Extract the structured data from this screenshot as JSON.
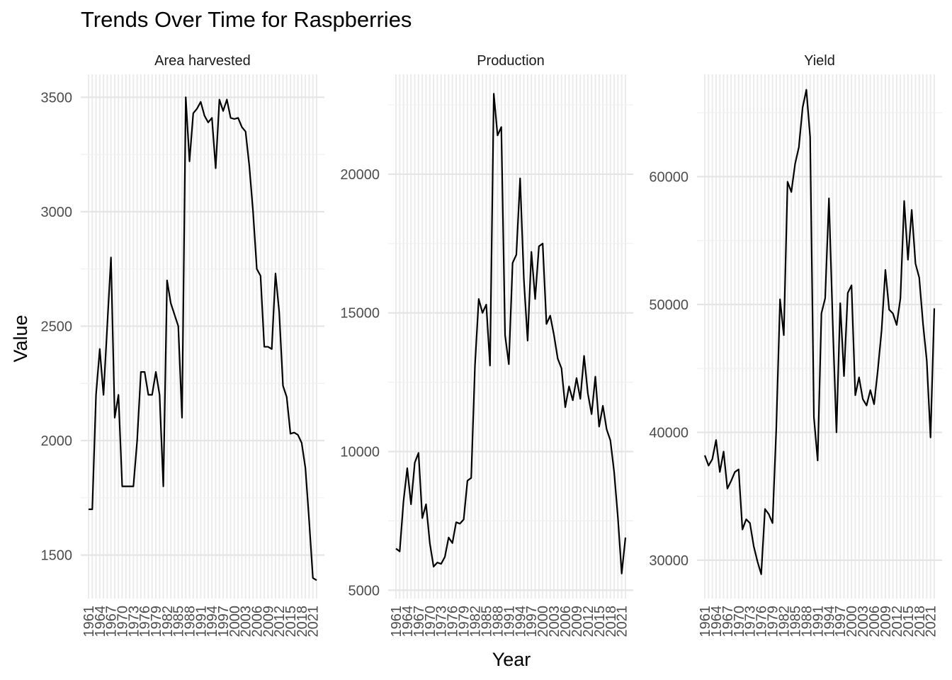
{
  "chart_data": {
    "type": "line",
    "title": "Trends Over Time for Raspberries",
    "xlabel": "Year",
    "ylabel": "Value",
    "grid": true,
    "x_tick_labels": [
      "1961",
      "1964",
      "1967",
      "1970",
      "1973",
      "1976",
      "1979",
      "1982",
      "1985",
      "1988",
      "1991",
      "1994",
      "1997",
      "2000",
      "2003",
      "2006",
      "2009",
      "2012",
      "2015",
      "2018",
      "2021"
    ],
    "x": [
      1961,
      1962,
      1963,
      1964,
      1965,
      1966,
      1967,
      1968,
      1969,
      1970,
      1971,
      1972,
      1973,
      1974,
      1975,
      1976,
      1977,
      1978,
      1979,
      1980,
      1981,
      1982,
      1983,
      1984,
      1985,
      1986,
      1987,
      1988,
      1989,
      1990,
      1991,
      1992,
      1993,
      1994,
      1995,
      1996,
      1997,
      1998,
      1999,
      2000,
      2001,
      2002,
      2003,
      2004,
      2005,
      2006,
      2007,
      2008,
      2009,
      2010,
      2011,
      2012,
      2013,
      2014,
      2015,
      2016,
      2017,
      2018,
      2019,
      2020,
      2021,
      2022
    ],
    "xlim": [
      1961,
      2022
    ],
    "panels": [
      {
        "name": "Area harvested",
        "ylim": [
          1310,
          3600
        ],
        "y_ticks": [
          1500,
          2000,
          2500,
          3000,
          3500
        ],
        "y_tick_labels": [
          "1500",
          "2000",
          "2500",
          "3000",
          "3500"
        ],
        "y_minor": [
          1750,
          2250,
          2750,
          3250
        ],
        "values": [
          1700,
          1700,
          2200,
          2400,
          2200,
          2500,
          2800,
          2100,
          2200,
          1800,
          1800,
          1800,
          1800,
          2000,
          2300,
          2300,
          2200,
          2200,
          2300,
          2200,
          1800,
          2700,
          2600,
          2550,
          2500,
          2100,
          3500,
          3220,
          3430,
          3450,
          3480,
          3420,
          3390,
          3410,
          3190,
          3490,
          3440,
          3490,
          3410,
          3405,
          3410,
          3370,
          3350,
          3200,
          3000,
          2750,
          2720,
          2410,
          2410,
          2400,
          2730,
          2560,
          2240,
          2190,
          2030,
          2035,
          2025,
          1990,
          1880,
          1650,
          1400,
          1390
        ]
      },
      {
        "name": "Production",
        "ylim": [
          4700,
          23600
        ],
        "y_ticks": [
          5000,
          10000,
          15000,
          20000
        ],
        "y_tick_labels": [
          "5000",
          "10000",
          "15000",
          "20000"
        ],
        "y_minor": [
          7500,
          12500,
          17500,
          22500
        ],
        "values": [
          6500,
          6400,
          8200,
          9400,
          8100,
          9600,
          9950,
          7600,
          8100,
          6700,
          5850,
          6000,
          5950,
          6200,
          6900,
          6700,
          7450,
          7400,
          7550,
          8950,
          9050,
          13100,
          15500,
          15000,
          15300,
          13100,
          22900,
          21400,
          21700,
          14200,
          13150,
          16800,
          17100,
          19850,
          16200,
          14000,
          17200,
          15500,
          17400,
          17500,
          14600,
          14900,
          14200,
          13350,
          13000,
          11600,
          12350,
          11850,
          12650,
          11900,
          13450,
          12100,
          11350,
          12700,
          10900,
          11650,
          10800,
          10400,
          9250,
          7600,
          5600,
          6900
        ]
      },
      {
        "name": "Yield",
        "ylim": [
          27000,
          68000
        ],
        "y_ticks": [
          30000,
          40000,
          50000,
          60000
        ],
        "y_tick_labels": [
          "30000",
          "40000",
          "50000",
          "60000"
        ],
        "y_minor": [
          35000,
          45000,
          55000,
          65000
        ],
        "values": [
          38200,
          37400,
          37900,
          39400,
          36900,
          38500,
          35600,
          36200,
          36900,
          37100,
          32400,
          33200,
          32900,
          31100,
          29900,
          28900,
          34000,
          33600,
          32900,
          40300,
          50400,
          47600,
          59600,
          58800,
          61000,
          62300,
          65400,
          66800,
          63100,
          41200,
          37800,
          49300,
          50500,
          58300,
          48600,
          40000,
          50100,
          44400,
          50900,
          51500,
          42900,
          44300,
          42600,
          42100,
          43300,
          42200,
          44900,
          48000,
          52700,
          49600,
          49300,
          48400,
          50500,
          58100,
          53500,
          57400,
          53200,
          52100,
          48500,
          45600,
          39600,
          49700
        ]
      }
    ]
  }
}
